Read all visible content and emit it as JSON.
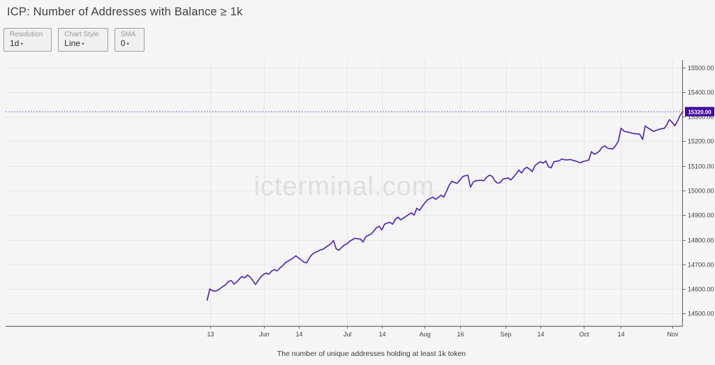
{
  "header": {
    "title": "ICP: Number of Addresses with Balance ≥ 1k"
  },
  "controls": [
    {
      "label": "Resolution",
      "value": "1d",
      "caret_icon": "▾"
    },
    {
      "label": "Chart Style",
      "value": "Line",
      "caret_icon": "▾"
    },
    {
      "label": "SMA",
      "value": "0",
      "caret_icon": "▾"
    }
  ],
  "watermark": "icterminal.com",
  "footer": {
    "caption": "The number of unique addresses holding at least 1k token"
  },
  "colors": {
    "line": "#5429b8",
    "badge_bg": "#43099f",
    "badge_text": "#ffffff",
    "grid": "#e7e7e9",
    "axis": "#6a6a72",
    "tick_text": "#3c3c3c"
  },
  "chart_data": {
    "type": "line",
    "title": "ICP: Number of Addresses with Balance ≥ 1k",
    "series_name": "Number of addresses with balance ≥ 1k",
    "legend": "none",
    "grid": true,
    "x_unit": "days since May 12",
    "x_domain_days": [
      -75,
      177
    ],
    "ylim": [
      14450,
      15530
    ],
    "y_ticks": [
      14500,
      14600,
      14700,
      14800,
      14900,
      15000,
      15100,
      15200,
      15300,
      15400,
      15500
    ],
    "x_ticks": [
      {
        "label": "13",
        "day": 1
      },
      {
        "label": "Jun",
        "day": 21
      },
      {
        "label": "14",
        "day": 34
      },
      {
        "label": "Jul",
        "day": 52
      },
      {
        "label": "14",
        "day": 65
      },
      {
        "label": "Aug",
        "day": 81
      },
      {
        "label": "16",
        "day": 94
      },
      {
        "label": "Sep",
        "day": 111
      },
      {
        "label": "14",
        "day": 124
      },
      {
        "label": "Oct",
        "day": 140
      },
      {
        "label": "14",
        "day": 154
      },
      {
        "label": "Nov",
        "day": 173
      }
    ],
    "last_value": 15320,
    "last_value_label": "15320.00",
    "points": [
      [
        0,
        14555
      ],
      [
        1,
        14600
      ],
      [
        2,
        14593
      ],
      [
        3,
        14591
      ],
      [
        4,
        14595
      ],
      [
        5,
        14603
      ],
      [
        6,
        14611
      ],
      [
        7,
        14618
      ],
      [
        8,
        14631
      ],
      [
        9,
        14634
      ],
      [
        10,
        14620
      ],
      [
        11,
        14628
      ],
      [
        12,
        14641
      ],
      [
        13,
        14651
      ],
      [
        14,
        14645
      ],
      [
        15,
        14657
      ],
      [
        16,
        14648
      ],
      [
        17,
        14634
      ],
      [
        18,
        14618
      ],
      [
        19,
        14634
      ],
      [
        20,
        14650
      ],
      [
        21,
        14659
      ],
      [
        22,
        14665
      ],
      [
        23,
        14660
      ],
      [
        24,
        14673
      ],
      [
        25,
        14679
      ],
      [
        26,
        14673
      ],
      [
        27,
        14684
      ],
      [
        28,
        14694
      ],
      [
        29,
        14705
      ],
      [
        30,
        14713
      ],
      [
        31,
        14719
      ],
      [
        32,
        14726
      ],
      [
        33,
        14735
      ],
      [
        34,
        14726
      ],
      [
        35,
        14718
      ],
      [
        36,
        14709
      ],
      [
        37,
        14706
      ],
      [
        38,
        14726
      ],
      [
        39,
        14740
      ],
      [
        40,
        14748
      ],
      [
        41,
        14752
      ],
      [
        42,
        14758
      ],
      [
        43,
        14761
      ],
      [
        44,
        14769
      ],
      [
        45,
        14776
      ],
      [
        46,
        14783
      ],
      [
        47,
        14797
      ],
      [
        48,
        14763
      ],
      [
        49,
        14757
      ],
      [
        50,
        14769
      ],
      [
        51,
        14778
      ],
      [
        52,
        14783
      ],
      [
        53,
        14794
      ],
      [
        54,
        14800
      ],
      [
        55,
        14806
      ],
      [
        56,
        14804
      ],
      [
        57,
        14803
      ],
      [
        58,
        14791
      ],
      [
        59,
        14812
      ],
      [
        60,
        14818
      ],
      [
        61,
        14823
      ],
      [
        62,
        14835
      ],
      [
        63,
        14849
      ],
      [
        64,
        14855
      ],
      [
        65,
        14840
      ],
      [
        66,
        14863
      ],
      [
        67,
        14868
      ],
      [
        68,
        14871
      ],
      [
        69,
        14863
      ],
      [
        70,
        14883
      ],
      [
        71,
        14892
      ],
      [
        72,
        14881
      ],
      [
        73,
        14888
      ],
      [
        74,
        14895
      ],
      [
        75,
        14903
      ],
      [
        76,
        14909
      ],
      [
        77,
        14900
      ],
      [
        78,
        14928
      ],
      [
        79,
        14919
      ],
      [
        80,
        14935
      ],
      [
        81,
        14950
      ],
      [
        82,
        14962
      ],
      [
        83,
        14968
      ],
      [
        84,
        14973
      ],
      [
        85,
        14964
      ],
      [
        86,
        14972
      ],
      [
        87,
        14981
      ],
      [
        88,
        14973
      ],
      [
        89,
        14996
      ],
      [
        90,
        15020
      ],
      [
        91,
        15038
      ],
      [
        92,
        15033
      ],
      [
        93,
        15029
      ],
      [
        94,
        15042
      ],
      [
        95,
        15056
      ],
      [
        96,
        15060
      ],
      [
        97,
        15062
      ],
      [
        98,
        15014
      ],
      [
        99,
        15034
      ],
      [
        100,
        15040
      ],
      [
        101,
        15041
      ],
      [
        102,
        15042
      ],
      [
        103,
        15040
      ],
      [
        104,
        15054
      ],
      [
        105,
        15062
      ],
      [
        106,
        15058
      ],
      [
        107,
        15040
      ],
      [
        108,
        15030
      ],
      [
        109,
        15032
      ],
      [
        110,
        15046
      ],
      [
        111,
        15049
      ],
      [
        112,
        15051
      ],
      [
        113,
        15043
      ],
      [
        114,
        15055
      ],
      [
        115,
        15068
      ],
      [
        116,
        15083
      ],
      [
        117,
        15071
      ],
      [
        118,
        15088
      ],
      [
        119,
        15094
      ],
      [
        120,
        15086
      ],
      [
        121,
        15077
      ],
      [
        122,
        15102
      ],
      [
        123,
        15110
      ],
      [
        124,
        15117
      ],
      [
        125,
        15111
      ],
      [
        126,
        15120
      ],
      [
        127,
        15097
      ],
      [
        128,
        15092
      ],
      [
        129,
        15117
      ],
      [
        130,
        15119
      ],
      [
        131,
        15121
      ],
      [
        132,
        15128
      ],
      [
        133,
        15125
      ],
      [
        134,
        15124
      ],
      [
        135,
        15126
      ],
      [
        136,
        15123
      ],
      [
        137,
        15120
      ],
      [
        138,
        15116
      ],
      [
        139,
        15113
      ],
      [
        140,
        15118
      ],
      [
        141,
        15121
      ],
      [
        142,
        15124
      ],
      [
        143,
        15158
      ],
      [
        144,
        15147
      ],
      [
        145,
        15152
      ],
      [
        146,
        15161
      ],
      [
        147,
        15176
      ],
      [
        148,
        15181
      ],
      [
        149,
        15172
      ],
      [
        150,
        15170
      ],
      [
        151,
        15169
      ],
      [
        152,
        15183
      ],
      [
        153,
        15201
      ],
      [
        154,
        15253
      ],
      [
        155,
        15242
      ],
      [
        156,
        15238
      ],
      [
        157,
        15236
      ],
      [
        158,
        15233
      ],
      [
        159,
        15231
      ],
      [
        160,
        15230
      ],
      [
        161,
        15228
      ],
      [
        162,
        15207
      ],
      [
        163,
        15262
      ],
      [
        164,
        15254
      ],
      [
        165,
        15248
      ],
      [
        166,
        15240
      ],
      [
        167,
        15244
      ],
      [
        168,
        15248
      ],
      [
        169,
        15251
      ],
      [
        170,
        15252
      ],
      [
        171,
        15267
      ],
      [
        172,
        15288
      ],
      [
        173,
        15277
      ],
      [
        174,
        15263
      ],
      [
        175,
        15282
      ],
      [
        176,
        15306
      ],
      [
        177,
        15320
      ]
    ]
  }
}
